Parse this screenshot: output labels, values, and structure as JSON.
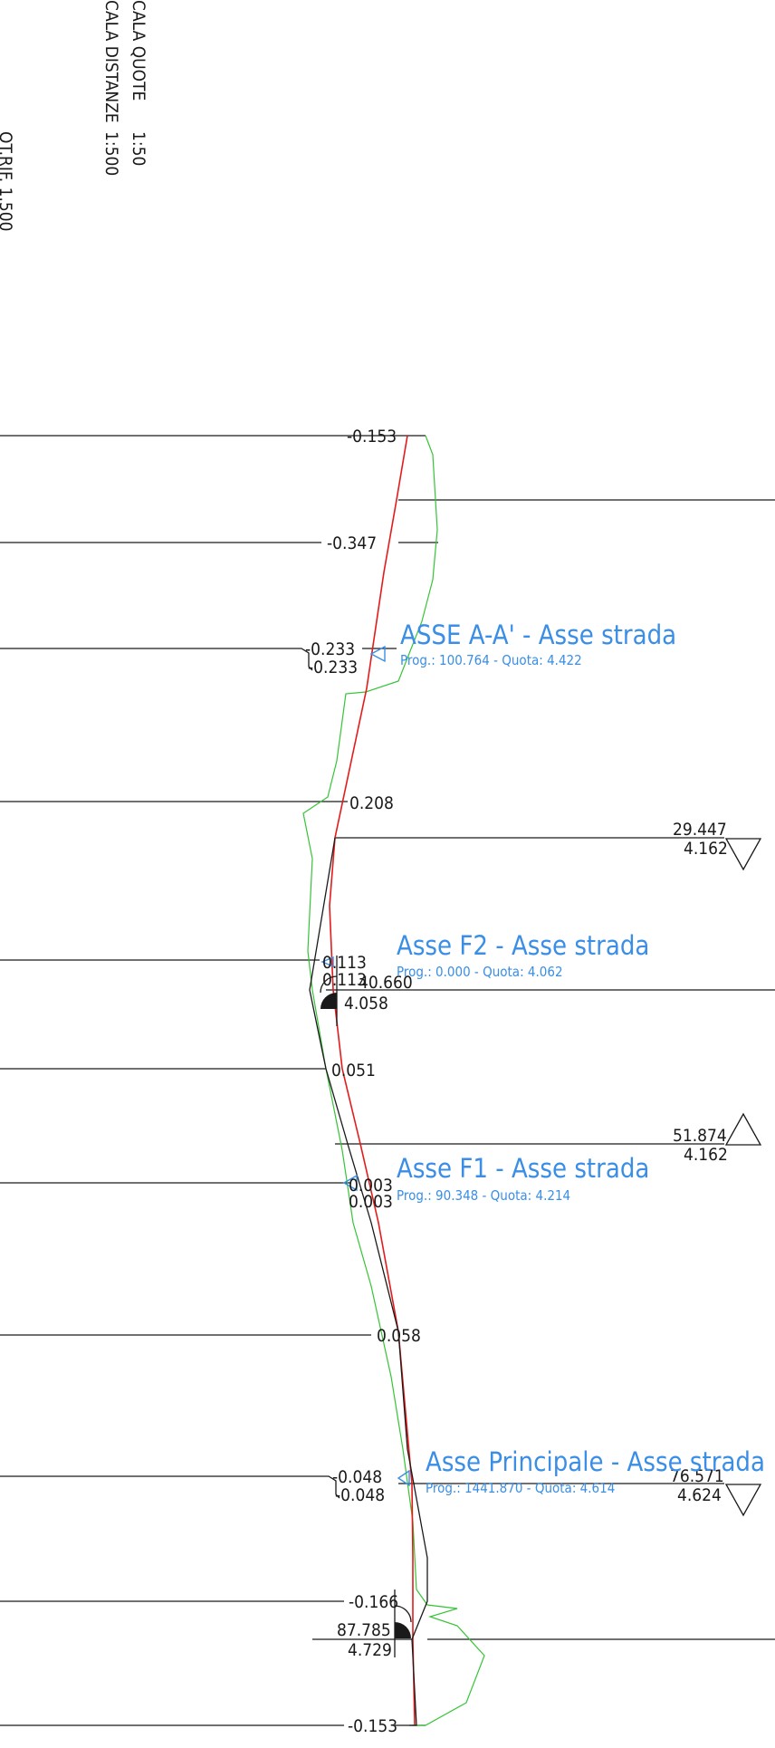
{
  "scale_block": {
    "scala_quote": "CALA QUOTE",
    "scala_quote_value": "1:50",
    "scala_distanze": "CALA DISTANZE",
    "scala_distanze_value": "1:500",
    "qt_rif": "QT.RIF. 1.500"
  },
  "offset_labels": [
    "-0.153",
    "-0.347",
    "-0.233",
    "-0.233",
    "0.208",
    "0.113",
    "0.113",
    "0.051",
    "0.003",
    "0.003",
    "0.058",
    "-0.048",
    "-0.048",
    "-0.166",
    "-0.153"
  ],
  "axes": [
    {
      "title": "ASSE A-A' - Asse strada",
      "info": "Prog.: 100.764 - Quota: 4.422"
    },
    {
      "title": "Asse F2 - Asse strada",
      "info": "Prog.: 0.000 - Quota: 4.062"
    },
    {
      "title": "Asse F1 - Asse strada",
      "info": "Prog.: 90.348 - Quota: 4.214"
    },
    {
      "title": "Asse Principale - Asse strada",
      "info": "Prog.: 1441.870 - Quota: 4.614"
    }
  ],
  "stations": [
    {
      "prog": "29.447",
      "quota": "4.162"
    },
    {
      "prog": "40.660",
      "quota": "4.058"
    },
    {
      "prog": "51.874",
      "quota": "4.162"
    },
    {
      "prog": "76.571",
      "quota": "4.624"
    },
    {
      "prog": "87.785",
      "quota": "4.729"
    }
  ],
  "colors": {
    "linework": "#1a1a1a",
    "design_line": "#e31b1b",
    "terrain_line": "#36c436",
    "axis_annotation": "#3a8ee6",
    "background": "#ffffff"
  }
}
